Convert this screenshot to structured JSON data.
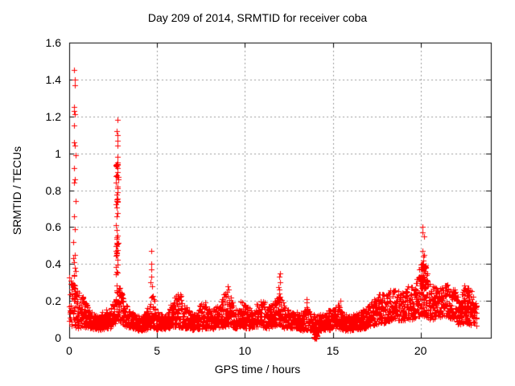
{
  "page": {
    "background": "#ffffff"
  },
  "chart_data": {
    "type": "scatter",
    "title": "Day 209 of 2014, SRMTID for receiver coba",
    "xlabel": "GPS time / hours",
    "ylabel": "SRMTID / TECUs",
    "xlim": [
      0,
      24
    ],
    "ylim": [
      0,
      1.6
    ],
    "xticks": {
      "values": [
        0,
        5,
        10,
        15,
        20
      ],
      "labels": [
        "0",
        "5",
        "10",
        "15",
        "20"
      ]
    },
    "yticks": {
      "values": [
        0,
        0.2,
        0.4,
        0.6,
        0.8,
        1.0,
        1.2,
        1.4,
        1.6
      ],
      "labels": [
        "0",
        "0.2",
        "0.4",
        "0.6",
        "0.8",
        "1",
        "1.2",
        "1.4",
        "1.6"
      ]
    },
    "grid": true,
    "legend": "none",
    "marker": {
      "shape": "plus",
      "color": "#ff0000",
      "size": 7
    },
    "grid_color": "#999999",
    "axis_color": "#000000",
    "text_color": "#000000",
    "generation": {
      "seed": 209,
      "x_start": 0.0,
      "x_end": 23.2,
      "sample_step_hours": 0.008,
      "density_exponent": 1.3,
      "baseline_envelope": [
        [
          0.0,
          0.08,
          0.33
        ],
        [
          0.2,
          0.06,
          0.3
        ],
        [
          0.5,
          0.05,
          0.25
        ],
        [
          0.8,
          0.06,
          0.22
        ],
        [
          1.1,
          0.05,
          0.16
        ],
        [
          1.4,
          0.04,
          0.13
        ],
        [
          1.7,
          0.04,
          0.12
        ],
        [
          2.0,
          0.05,
          0.16
        ],
        [
          2.3,
          0.05,
          0.14
        ],
        [
          2.55,
          0.07,
          0.22
        ],
        [
          2.75,
          0.1,
          0.3
        ],
        [
          3.0,
          0.07,
          0.24
        ],
        [
          3.3,
          0.06,
          0.18
        ],
        [
          3.6,
          0.05,
          0.14
        ],
        [
          3.9,
          0.04,
          0.12
        ],
        [
          4.2,
          0.04,
          0.12
        ],
        [
          4.5,
          0.05,
          0.18
        ],
        [
          4.75,
          0.06,
          0.25
        ],
        [
          5.0,
          0.04,
          0.14
        ],
        [
          5.3,
          0.05,
          0.13
        ],
        [
          5.6,
          0.05,
          0.16
        ],
        [
          5.9,
          0.06,
          0.2
        ],
        [
          6.2,
          0.06,
          0.26
        ],
        [
          6.5,
          0.05,
          0.2
        ],
        [
          6.8,
          0.05,
          0.15
        ],
        [
          7.1,
          0.04,
          0.13
        ],
        [
          7.4,
          0.05,
          0.17
        ],
        [
          7.7,
          0.05,
          0.2
        ],
        [
          8.0,
          0.05,
          0.15
        ],
        [
          8.3,
          0.05,
          0.16
        ],
        [
          8.6,
          0.06,
          0.2
        ],
        [
          8.9,
          0.06,
          0.26
        ],
        [
          9.2,
          0.06,
          0.22
        ],
        [
          9.5,
          0.05,
          0.17
        ],
        [
          9.8,
          0.06,
          0.2
        ],
        [
          10.1,
          0.05,
          0.18
        ],
        [
          10.4,
          0.05,
          0.15
        ],
        [
          10.7,
          0.06,
          0.19
        ],
        [
          11.0,
          0.06,
          0.21
        ],
        [
          11.3,
          0.05,
          0.17
        ],
        [
          11.6,
          0.06,
          0.19
        ],
        [
          11.95,
          0.07,
          0.24
        ],
        [
          12.3,
          0.05,
          0.17
        ],
        [
          12.6,
          0.05,
          0.14
        ],
        [
          12.9,
          0.05,
          0.15
        ],
        [
          13.2,
          0.04,
          0.14
        ],
        [
          13.5,
          0.04,
          0.17
        ],
        [
          13.8,
          0.04,
          0.13
        ],
        [
          14.1,
          0.03,
          0.12
        ],
        [
          14.4,
          0.04,
          0.13
        ],
        [
          14.7,
          0.04,
          0.15
        ],
        [
          15.0,
          0.05,
          0.16
        ],
        [
          15.3,
          0.05,
          0.18
        ],
        [
          15.6,
          0.04,
          0.14
        ],
        [
          15.9,
          0.04,
          0.12
        ],
        [
          16.2,
          0.04,
          0.13
        ],
        [
          16.5,
          0.05,
          0.14
        ],
        [
          16.8,
          0.05,
          0.16
        ],
        [
          17.1,
          0.06,
          0.18
        ],
        [
          17.4,
          0.07,
          0.23
        ],
        [
          17.7,
          0.08,
          0.24
        ],
        [
          18.0,
          0.08,
          0.24
        ],
        [
          18.3,
          0.09,
          0.26
        ],
        [
          18.6,
          0.1,
          0.27
        ],
        [
          18.9,
          0.09,
          0.25
        ],
        [
          19.2,
          0.1,
          0.28
        ],
        [
          19.5,
          0.1,
          0.29
        ],
        [
          19.8,
          0.11,
          0.32
        ],
        [
          20.1,
          0.12,
          0.36
        ],
        [
          20.4,
          0.1,
          0.32
        ],
        [
          20.7,
          0.1,
          0.28
        ],
        [
          21.0,
          0.11,
          0.27
        ],
        [
          21.3,
          0.12,
          0.29
        ],
        [
          21.6,
          0.11,
          0.3
        ],
        [
          21.9,
          0.1,
          0.27
        ],
        [
          22.2,
          0.07,
          0.2
        ],
        [
          22.5,
          0.08,
          0.28
        ],
        [
          22.8,
          0.07,
          0.29
        ],
        [
          23.0,
          0.06,
          0.24
        ],
        [
          23.2,
          0.06,
          0.18
        ]
      ],
      "spikes": [
        {
          "x": 0.3,
          "x_jitter": 0.07,
          "values": [
            1.45,
            1.4,
            1.37,
            1.25,
            1.23,
            1.21,
            1.15,
            1.06,
            1.04,
            0.99,
            0.92,
            0.86,
            0.84,
            0.74,
            0.66,
            0.59,
            0.52,
            0.45,
            0.43,
            0.41,
            0.38,
            0.36,
            0.34
          ]
        },
        {
          "x": 2.72,
          "x_jitter": 0.05,
          "values": [
            1.18,
            1.12,
            1.1,
            1.07,
            1.04,
            0.98,
            0.94,
            0.9
          ]
        },
        {
          "x": 4.67,
          "x_jitter": 0.04,
          "values": [
            0.47,
            0.4,
            0.37,
            0.33,
            0.3,
            0.28
          ]
        },
        {
          "x": 9.05,
          "x_jitter": 0.1,
          "values": [
            0.28,
            0.26,
            0.25
          ]
        },
        {
          "x": 11.95,
          "x_jitter": 0.04,
          "values": [
            0.35,
            0.33,
            0.3,
            0.275,
            0.26,
            0.24,
            0.22
          ]
        },
        {
          "x": 13.5,
          "x_jitter": 0.03,
          "values": [
            0.21,
            0.19
          ]
        },
        {
          "x": 15.35,
          "x_jitter": 0.08,
          "values": [
            0.2,
            0.18,
            0.17
          ]
        },
        {
          "x": 20.15,
          "x_jitter": 0.05,
          "values": [
            0.6,
            0.57,
            0.55,
            0.47,
            0.45,
            0.44,
            0.42,
            0.4,
            0.38
          ]
        }
      ],
      "dense_columns": [
        {
          "x": 2.72,
          "x_jitter": 0.06,
          "y_min": 0.28,
          "y_max": 0.96,
          "count": 55
        },
        {
          "x": 0.3,
          "x_jitter": 0.05,
          "y_min": 0.2,
          "y_max": 0.34,
          "count": 12
        },
        {
          "x": 20.15,
          "x_jitter": 0.22,
          "y_min": 0.26,
          "y_max": 0.42,
          "count": 40
        },
        {
          "x": 22.62,
          "x_jitter": 0.15,
          "y_min": 0.12,
          "y_max": 0.3,
          "count": 30
        }
      ],
      "blob": {
        "x": 14.02,
        "y": 0.015,
        "x_spread": 0.09,
        "y_spread": 0.02,
        "count": 26
      }
    }
  }
}
